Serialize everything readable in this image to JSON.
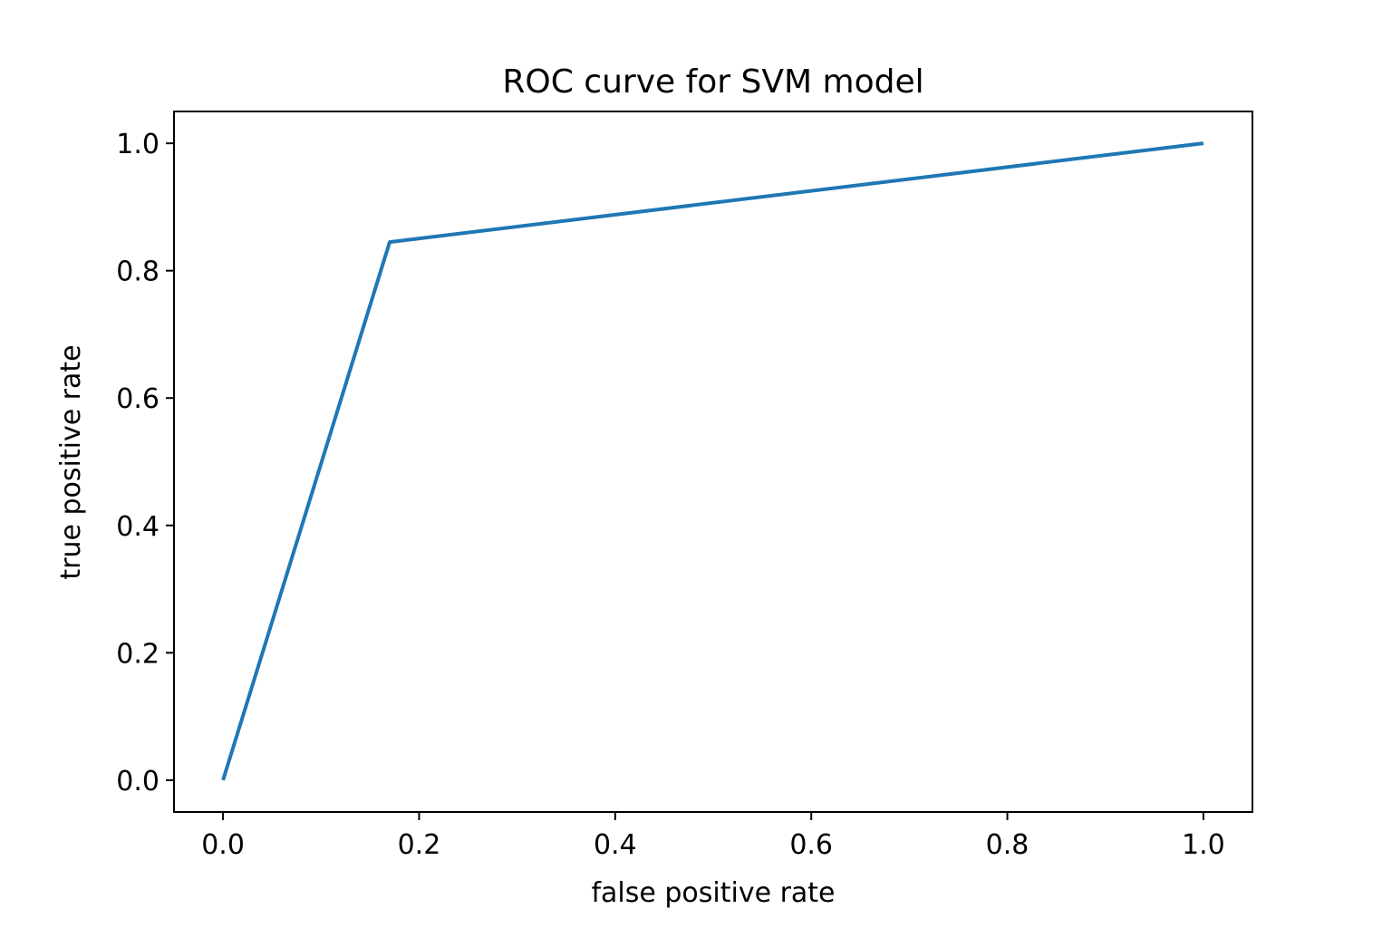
{
  "chart_data": {
    "type": "line",
    "title": "ROC curve for SVM model",
    "xlabel": "false positive rate",
    "ylabel": "true positive rate",
    "xlim": [
      -0.05,
      1.05
    ],
    "ylim": [
      -0.05,
      1.05
    ],
    "xticks": [
      0.0,
      0.2,
      0.4,
      0.6,
      0.8,
      1.0
    ],
    "yticks": [
      0.0,
      0.2,
      0.4,
      0.6,
      0.8,
      1.0
    ],
    "xtick_labels": [
      "0.0",
      "0.2",
      "0.4",
      "0.6",
      "0.8",
      "1.0"
    ],
    "ytick_labels": [
      "0.0",
      "0.2",
      "0.4",
      "0.6",
      "0.8",
      "1.0"
    ],
    "grid": false,
    "legend": false,
    "series": [
      {
        "color": "#1f77b4",
        "x": [
          0.0,
          0.17,
          1.0
        ],
        "y": [
          0.0,
          0.845,
          1.0
        ]
      }
    ]
  }
}
